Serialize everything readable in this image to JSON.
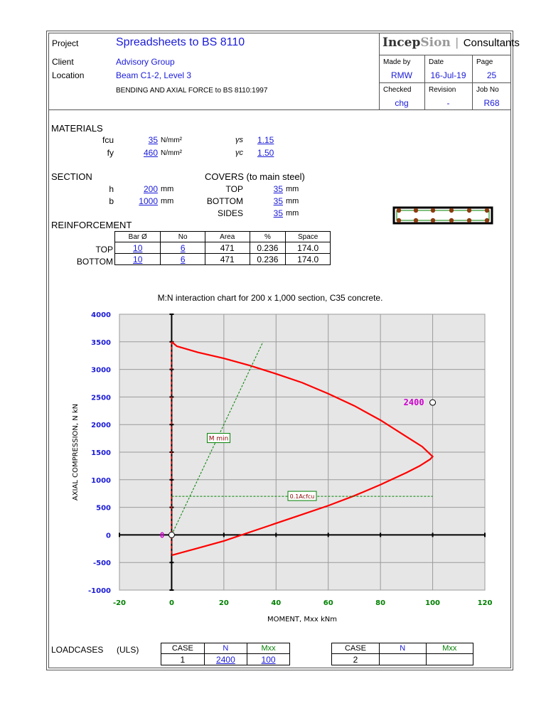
{
  "header": {
    "project_label": "Project",
    "project_value": "Spreadsheets to BS 8110",
    "client_label": "Client",
    "client_value": "Advisory Group",
    "location_label": "Location",
    "location_value": "Beam C1-2, Level 3",
    "subtitle": "BENDING AND AXIAL FORCE to BS 8110:1997",
    "logo_part1": "Incep",
    "logo_part2": "Sion",
    "logo_part3": "Consultants",
    "made_by_label": "Made by",
    "made_by_value": "RMW",
    "date_label": "Date",
    "date_value": "16-Jul-19",
    "page_label": "Page",
    "page_value": "25",
    "checked_label": "Checked",
    "checked_value": "chg",
    "revision_label": "Revision",
    "revision_value": "-",
    "jobno_label": "Job No",
    "jobno_value": "R68"
  },
  "materials": {
    "title": "MATERIALS",
    "fcu_label": "fcu",
    "fcu_value": "35",
    "fcu_unit": "N/mm²",
    "fy_label": "fy",
    "fy_value": "460",
    "fy_unit": "N/mm²",
    "gs_label": "γs",
    "gs_value": "1.15",
    "gc_label": "γc",
    "gc_value": "1.50"
  },
  "section": {
    "title": "SECTION",
    "h_label": "h",
    "h_value": "200",
    "h_unit": "mm",
    "b_label": "b",
    "b_value": "1000",
    "b_unit": "mm",
    "covers_title": "COVERS (to main steel)",
    "top_label": "TOP",
    "top_value": "35",
    "bottom_label": "BOTTOM",
    "bottom_value": "35",
    "sides_label": "SIDES",
    "sides_value": "35",
    "cover_unit": "mm"
  },
  "reinforcement": {
    "title": "REINFORCEMENT",
    "headers": [
      "Bar Ø",
      "No",
      "Area",
      "%",
      "Space"
    ],
    "rows": [
      {
        "label": "TOP",
        "bar": "10",
        "no": "6",
        "area": "471",
        "pct": "0.236",
        "space": "174.0"
      },
      {
        "label": "BOTTOM",
        "bar": "10",
        "no": "6",
        "area": "471",
        "pct": "0.236",
        "space": "174.0"
      }
    ]
  },
  "chart_data": {
    "type": "line",
    "title": "M:N interaction chart for 200 x 1,000 section, C35 concrete.",
    "xlabel": "MOMENT, Mxx kNm",
    "ylabel": "AXIAL COMPRESSION, N kN",
    "xlim": [
      -20,
      120
    ],
    "ylim": [
      -1000,
      4000
    ],
    "xticks": [
      -20,
      0,
      20,
      40,
      60,
      80,
      100,
      120
    ],
    "yticks": [
      -1000,
      -500,
      0,
      500,
      1000,
      1500,
      2000,
      2500,
      3000,
      3500,
      4000
    ],
    "grid": true,
    "series": [
      {
        "key": "interaction",
        "color": "#ff0000",
        "x": [
          0,
          2,
          10,
          20,
          30,
          40,
          50,
          60,
          70,
          80,
          90,
          96,
          100,
          99,
          95,
          90,
          80,
          70,
          60,
          50,
          40,
          30,
          20,
          10,
          0
        ],
        "y": [
          3500,
          3420,
          3310,
          3200,
          3070,
          2920,
          2760,
          2560,
          2340,
          2080,
          1780,
          1600,
          1420,
          1370,
          1250,
          1130,
          910,
          710,
          530,
          370,
          210,
          50,
          -110,
          -240,
          -370
        ]
      },
      {
        "key": "mmin",
        "color": "#008000",
        "dashed": true,
        "x": [
          0,
          35
        ],
        "y": [
          0,
          3500
        ]
      },
      {
        "key": "axial01",
        "color": "#008000",
        "dashed": true,
        "x": [
          0,
          100
        ],
        "y": [
          700,
          700
        ]
      }
    ],
    "annotations": [
      {
        "text": "M min",
        "x": 18,
        "y": 1750
      },
      {
        "text": "0.1Acfcu",
        "x": 50,
        "y": 700
      }
    ],
    "points": [
      {
        "label": "2400",
        "x": 100,
        "y": 2400
      },
      {
        "label": "0",
        "x": 0,
        "y": 0
      }
    ]
  },
  "loadcases": {
    "title": "LOADCASES",
    "title_suffix": "(ULS)",
    "headers": [
      "CASE",
      "N",
      "Mxx"
    ],
    "case1": {
      "case": "1",
      "n": "2400",
      "m": "100"
    },
    "case2": {
      "case": "2",
      "n": "",
      "m": ""
    }
  },
  "colors": {
    "accent": "#1a1ad9",
    "curve": "#ff0000",
    "guide": "#008000",
    "point_label": "#cc00cc",
    "axis_tick": "#1a1ad9",
    "x_tick": "#008000"
  }
}
